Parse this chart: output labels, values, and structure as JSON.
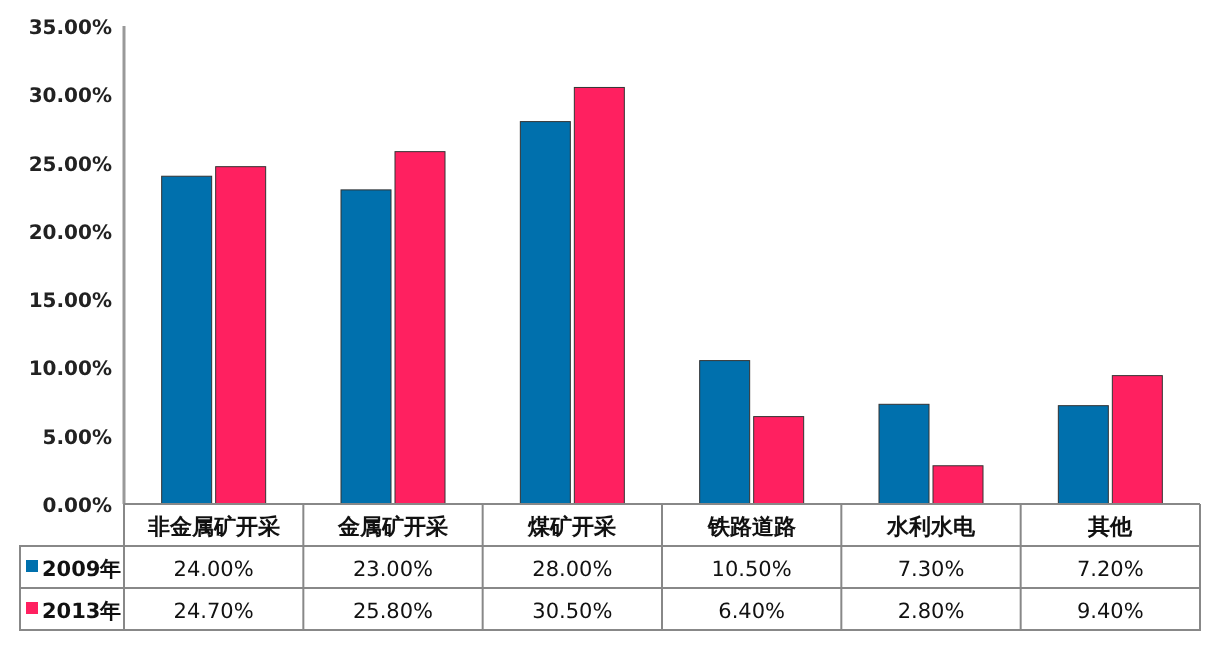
{
  "chart_data": {
    "type": "bar",
    "categories": [
      "非金属矿开采",
      "金属矿开采",
      "煤矿开采",
      "铁路道路",
      "水利水电",
      "其他"
    ],
    "series": [
      {
        "name": "2009年",
        "color": "#0070ad",
        "values": [
          24.0,
          23.0,
          28.0,
          10.5,
          7.3,
          7.2
        ],
        "value_labels": [
          "24.00%",
          "23.00%",
          "28.00%",
          "10.50%",
          "7.30%",
          "7.20%"
        ]
      },
      {
        "name": "2013年",
        "color": "#ff2060",
        "values": [
          24.7,
          25.8,
          30.5,
          6.4,
          2.8,
          9.4
        ],
        "value_labels": [
          "24.70%",
          "25.80%",
          "30.50%",
          "6.40%",
          "2.80%",
          "9.40%"
        ]
      }
    ],
    "legend": "bottom left",
    "ylim": [
      0,
      35
    ],
    "yticks": [
      {
        "value": 0,
        "label": "0.00%"
      },
      {
        "value": 5,
        "label": "5.00%"
      },
      {
        "value": 10,
        "label": "10.00%"
      },
      {
        "value": 15,
        "label": "15.00%"
      },
      {
        "value": 20,
        "label": "20.00%"
      },
      {
        "value": 25,
        "label": "25.00%"
      },
      {
        "value": 30,
        "label": "30.00%"
      },
      {
        "value": 35,
        "label": "35.00%"
      }
    ]
  }
}
